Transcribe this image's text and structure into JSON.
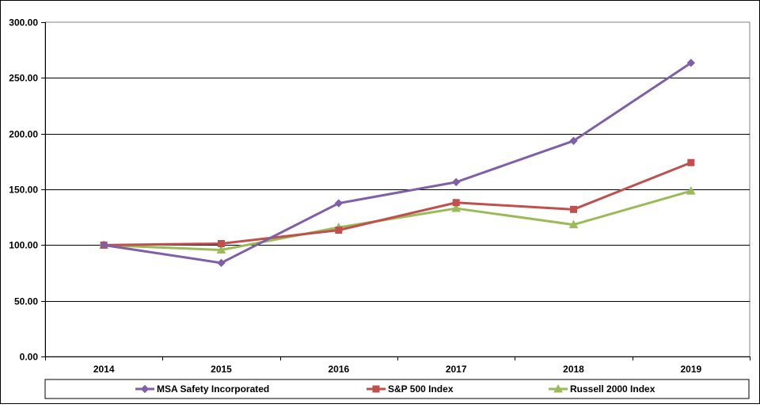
{
  "chart_data": {
    "type": "line",
    "title": "",
    "xlabel": "",
    "ylabel": "",
    "categories": [
      "2014",
      "2015",
      "2016",
      "2017",
      "2018",
      "2019"
    ],
    "ylim": [
      0,
      300
    ],
    "yticks": [
      0,
      50,
      100,
      150,
      200,
      250,
      300
    ],
    "ytick_labels": [
      "0.00",
      "50.00",
      "100.00",
      "150.00",
      "200.00",
      "250.00",
      "300.00"
    ],
    "grid": true,
    "legend_position": "bottom",
    "series": [
      {
        "name": "MSA Safety Incorporated",
        "values": [
          100.0,
          84.0,
          137.5,
          156.5,
          193.5,
          263.5
        ],
        "color": "#7f5fa8",
        "marker": "diamond"
      },
      {
        "name": "S&P 500 Index",
        "values": [
          100.0,
          101.3,
          113.4,
          138.1,
          132.0,
          174.0
        ],
        "color": "#c0504d",
        "marker": "square"
      },
      {
        "name": "Russell 2000 Index",
        "values": [
          100.0,
          95.6,
          115.9,
          132.9,
          118.3,
          148.5
        ],
        "color": "#9bbb59",
        "marker": "triangle"
      }
    ]
  }
}
